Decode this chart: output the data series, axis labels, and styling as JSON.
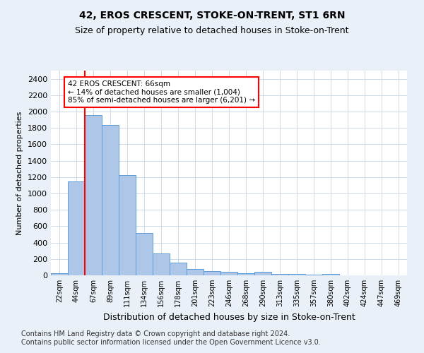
{
  "title": "42, EROS CRESCENT, STOKE-ON-TRENT, ST1 6RN",
  "subtitle": "Size of property relative to detached houses in Stoke-on-Trent",
  "xlabel": "Distribution of detached houses by size in Stoke-on-Trent",
  "ylabel": "Number of detached properties",
  "categories": [
    "22sqm",
    "44sqm",
    "67sqm",
    "89sqm",
    "111sqm",
    "134sqm",
    "156sqm",
    "178sqm",
    "201sqm",
    "223sqm",
    "246sqm",
    "268sqm",
    "290sqm",
    "313sqm",
    "335sqm",
    "357sqm",
    "380sqm",
    "402sqm",
    "424sqm",
    "447sqm",
    "469sqm"
  ],
  "values": [
    30,
    1150,
    1960,
    1840,
    1220,
    515,
    265,
    155,
    80,
    50,
    45,
    25,
    40,
    20,
    18,
    5,
    20,
    2,
    2,
    2,
    2
  ],
  "bar_color": "#aec6e8",
  "bar_edge_color": "#5b9bd5",
  "vline_color": "red",
  "annotation_line1": "42 EROS CRESCENT: 66sqm",
  "annotation_line2": "← 14% of detached houses are smaller (1,004)",
  "annotation_line3": "85% of semi-detached houses are larger (6,201) →",
  "annotation_box_color": "white",
  "annotation_edge_color": "red",
  "ylim": [
    0,
    2500
  ],
  "yticks": [
    0,
    200,
    400,
    600,
    800,
    1000,
    1200,
    1400,
    1600,
    1800,
    2000,
    2200,
    2400
  ],
  "footer_line1": "Contains HM Land Registry data © Crown copyright and database right 2024.",
  "footer_line2": "Contains public sector information licensed under the Open Government Licence v3.0.",
  "bg_color": "#eaf0f8",
  "plot_bg_color": "#ffffff",
  "grid_color": "#c8d4e4",
  "title_fontsize": 10,
  "subtitle_fontsize": 9,
  "xlabel_fontsize": 9,
  "ylabel_fontsize": 8,
  "tick_fontsize": 8,
  "footer_fontsize": 7
}
